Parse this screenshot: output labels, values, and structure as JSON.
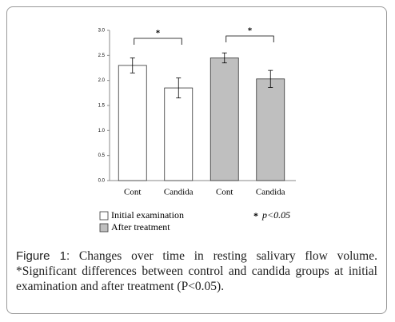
{
  "chart_data": {
    "type": "bar",
    "categories": [
      "Cont",
      "Candida",
      "Cont",
      "Candida"
    ],
    "series": [
      {
        "name": "Initial examination",
        "color": "#ffffff",
        "values": [
          2.3,
          1.85,
          null,
          null
        ],
        "errors": [
          0.15,
          0.2,
          null,
          null
        ]
      },
      {
        "name": "After treatment",
        "color": "#bfbfbf",
        "values": [
          null,
          null,
          2.45,
          2.03
        ],
        "errors": [
          null,
          null,
          0.1,
          0.17
        ]
      }
    ],
    "ylim": [
      0,
      3
    ],
    "yticks": [
      {
        "value": 0,
        "label": "0.0"
      },
      {
        "value": 0.5,
        "label": "0.5"
      },
      {
        "value": 1,
        "label": "1.0"
      },
      {
        "value": 1.5,
        "label": "1.5"
      },
      {
        "value": 2,
        "label": "2.0"
      },
      {
        "value": 2.5,
        "label": "2.5"
      },
      {
        "value": 3,
        "label": "3.0"
      }
    ],
    "annotations": [
      "*",
      "*"
    ],
    "significance_legend": {
      "symbol": "*",
      "text": "p<0.05"
    }
  },
  "caption": {
    "label": "Figure 1:",
    "text": "Changes over time in resting salivary flow volume. *Significant differences between control and candida groups at initial examination and after treatment (P<0.05)."
  }
}
